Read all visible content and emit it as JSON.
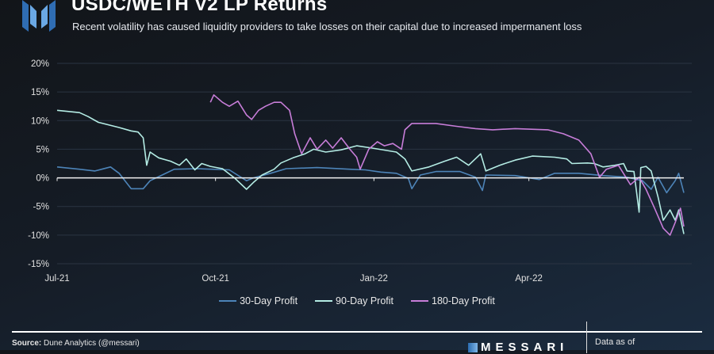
{
  "header": {
    "title": "USDC/WETH V2 LP Returns",
    "subtitle": "Recent volatility has caused liquidity providers to take losses on their capital due to increased impermanent loss"
  },
  "footer": {
    "source_label": "Source:",
    "source_text": "Dune Analytics (@messari)",
    "brand": "MESSARI",
    "data_as_of": "Data as of"
  },
  "chart_data": {
    "type": "line",
    "title": "USDC/WETH V2 LP Returns",
    "xlabel": "",
    "ylabel": "",
    "x_unit": "days since 2021-07-01",
    "xlim": [
      0,
      364
    ],
    "ylim": [
      -15,
      20
    ],
    "yticks": [
      20,
      15,
      10,
      5,
      0,
      -5,
      -10,
      -15
    ],
    "ytick_labels": [
      "20%",
      "15%",
      "10%",
      "5%",
      "0%",
      "-5%",
      "-10%",
      "-15%"
    ],
    "xticks": [
      0,
      92,
      184,
      274
    ],
    "xtick_labels": [
      "Jul-21",
      "Oct-21",
      "Jan-22",
      "Apr-22"
    ],
    "grid": true,
    "legend": "bottom",
    "series": [
      {
        "name": "30-Day Profit",
        "color": "#4d84b8",
        "points": [
          [
            0,
            1.9
          ],
          [
            13,
            1.5
          ],
          [
            22,
            1.2
          ],
          [
            31,
            1.9
          ],
          [
            36,
            0.8
          ],
          [
            43,
            -1.9
          ],
          [
            50,
            -1.9
          ],
          [
            54,
            -0.5
          ],
          [
            61,
            0.5
          ],
          [
            68,
            1.5
          ],
          [
            82,
            1.6
          ],
          [
            100,
            1.4
          ],
          [
            110,
            -0.5
          ],
          [
            114,
            0
          ],
          [
            124,
            0.8
          ],
          [
            133,
            1.6
          ],
          [
            151,
            1.8
          ],
          [
            170,
            1.5
          ],
          [
            179,
            1.4
          ],
          [
            188,
            1
          ],
          [
            197,
            0.8
          ],
          [
            204,
            -0.1
          ],
          [
            206,
            -1.9
          ],
          [
            211,
            0.5
          ],
          [
            220,
            1.1
          ],
          [
            234,
            1.1
          ],
          [
            243,
            0.1
          ],
          [
            247,
            -2.2
          ],
          [
            249,
            0.5
          ],
          [
            266,
            0.4
          ],
          [
            280,
            -0.3
          ],
          [
            289,
            0.8
          ],
          [
            303,
            0.8
          ],
          [
            317,
            0.4
          ],
          [
            331,
            0.1
          ],
          [
            340,
            -0.5
          ],
          [
            345,
            -2
          ],
          [
            349,
            0.1
          ],
          [
            354,
            -2.6
          ],
          [
            359,
            -0.5
          ],
          [
            361,
            0.8
          ],
          [
            364,
            -2.6
          ]
        ]
      },
      {
        "name": "90-Day Profit",
        "color": "#b4ece4",
        "points": [
          [
            0,
            11.8
          ],
          [
            13,
            11.4
          ],
          [
            18,
            10.7
          ],
          [
            24,
            9.7
          ],
          [
            36,
            8.8
          ],
          [
            43,
            8.2
          ],
          [
            47,
            8
          ],
          [
            50,
            7
          ],
          [
            52,
            2.2
          ],
          [
            54,
            4.5
          ],
          [
            59,
            3.5
          ],
          [
            66,
            2.9
          ],
          [
            71,
            2.2
          ],
          [
            75,
            3.3
          ],
          [
            80,
            1.4
          ],
          [
            84,
            2.5
          ],
          [
            89,
            2
          ],
          [
            96,
            1.6
          ],
          [
            103,
            0
          ],
          [
            110,
            -2
          ],
          [
            114,
            -0.8
          ],
          [
            119,
            0.5
          ],
          [
            126,
            1.5
          ],
          [
            130,
            2.6
          ],
          [
            137,
            3.5
          ],
          [
            144,
            4.2
          ],
          [
            149,
            5
          ],
          [
            156,
            4.5
          ],
          [
            165,
            4.9
          ],
          [
            174,
            5.6
          ],
          [
            183,
            5.2
          ],
          [
            197,
            4.5
          ],
          [
            202,
            3.3
          ],
          [
            206,
            1.2
          ],
          [
            216,
            1.9
          ],
          [
            225,
            2.9
          ],
          [
            232,
            3.6
          ],
          [
            239,
            2.2
          ],
          [
            246,
            4.2
          ],
          [
            249,
            1.2
          ],
          [
            257,
            2.2
          ],
          [
            266,
            3.1
          ],
          [
            276,
            3.8
          ],
          [
            289,
            3.6
          ],
          [
            296,
            3.3
          ],
          [
            299,
            2.5
          ],
          [
            308,
            2.6
          ],
          [
            312,
            2.5
          ],
          [
            317,
            1.9
          ],
          [
            324,
            2.2
          ],
          [
            329,
            2.5
          ],
          [
            331,
            1.2
          ],
          [
            335,
            1.1
          ],
          [
            338,
            -6
          ],
          [
            339,
            1.8
          ],
          [
            342,
            2
          ],
          [
            345,
            1.2
          ],
          [
            349,
            -3.3
          ],
          [
            352,
            -7.4
          ],
          [
            356,
            -5.6
          ],
          [
            359,
            -7.4
          ],
          [
            361,
            -5.6
          ],
          [
            364,
            -9.8
          ]
        ]
      },
      {
        "name": "180-Day Profit",
        "color": "#c77dd8",
        "points": [
          [
            89,
            13.2
          ],
          [
            91,
            14.5
          ],
          [
            96,
            13.2
          ],
          [
            100,
            12.5
          ],
          [
            105,
            13.4
          ],
          [
            110,
            11
          ],
          [
            113,
            10.2
          ],
          [
            117,
            11.8
          ],
          [
            121,
            12.5
          ],
          [
            126,
            13.2
          ],
          [
            130,
            13.2
          ],
          [
            135,
            11.8
          ],
          [
            138,
            7.7
          ],
          [
            142,
            4.2
          ],
          [
            147,
            7
          ],
          [
            151,
            5
          ],
          [
            156,
            6.6
          ],
          [
            160,
            5.2
          ],
          [
            165,
            7
          ],
          [
            170,
            5
          ],
          [
            174,
            3.6
          ],
          [
            176,
            1.5
          ],
          [
            181,
            5
          ],
          [
            186,
            6.3
          ],
          [
            190,
            5.6
          ],
          [
            195,
            6
          ],
          [
            200,
            5
          ],
          [
            202,
            8.4
          ],
          [
            206,
            9.5
          ],
          [
            220,
            9.5
          ],
          [
            232,
            9
          ],
          [
            243,
            8.6
          ],
          [
            253,
            8.4
          ],
          [
            266,
            8.6
          ],
          [
            285,
            8.4
          ],
          [
            294,
            7.7
          ],
          [
            303,
            6.6
          ],
          [
            310,
            4.2
          ],
          [
            315,
            0.1
          ],
          [
            319,
            1.5
          ],
          [
            326,
            2.2
          ],
          [
            333,
            -1.2
          ],
          [
            338,
            0.1
          ],
          [
            342,
            -2
          ],
          [
            347,
            -5.3
          ],
          [
            352,
            -8.8
          ],
          [
            356,
            -10
          ],
          [
            359,
            -7.8
          ],
          [
            362,
            -5.3
          ],
          [
            364,
            -8.5
          ]
        ]
      }
    ]
  }
}
